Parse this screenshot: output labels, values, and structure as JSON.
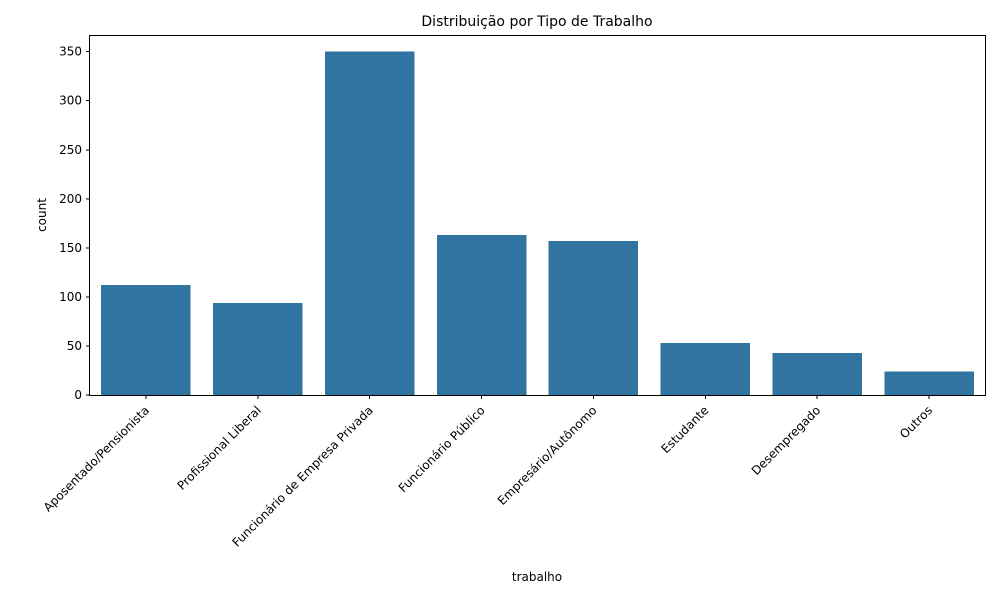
{
  "chart_data": {
    "type": "bar",
    "title": "Distribuição por Tipo de Trabalho",
    "xlabel": "trabalho",
    "ylabel": "count",
    "categories": [
      "Aposentado/Pensionista",
      "Profissional Liberal",
      "Funcionário de Empresa Privada",
      "Funcionário Público",
      "Empresário/Autônomo",
      "Estudante",
      "Desempregado",
      "Outros"
    ],
    "values": [
      112,
      94,
      350,
      163,
      157,
      53,
      43,
      24
    ],
    "ylim": [
      0,
      367
    ],
    "yticks": [
      0,
      50,
      100,
      150,
      200,
      250,
      300,
      350
    ],
    "bar_color": "#3274a1",
    "grid": false,
    "legend": "none"
  }
}
